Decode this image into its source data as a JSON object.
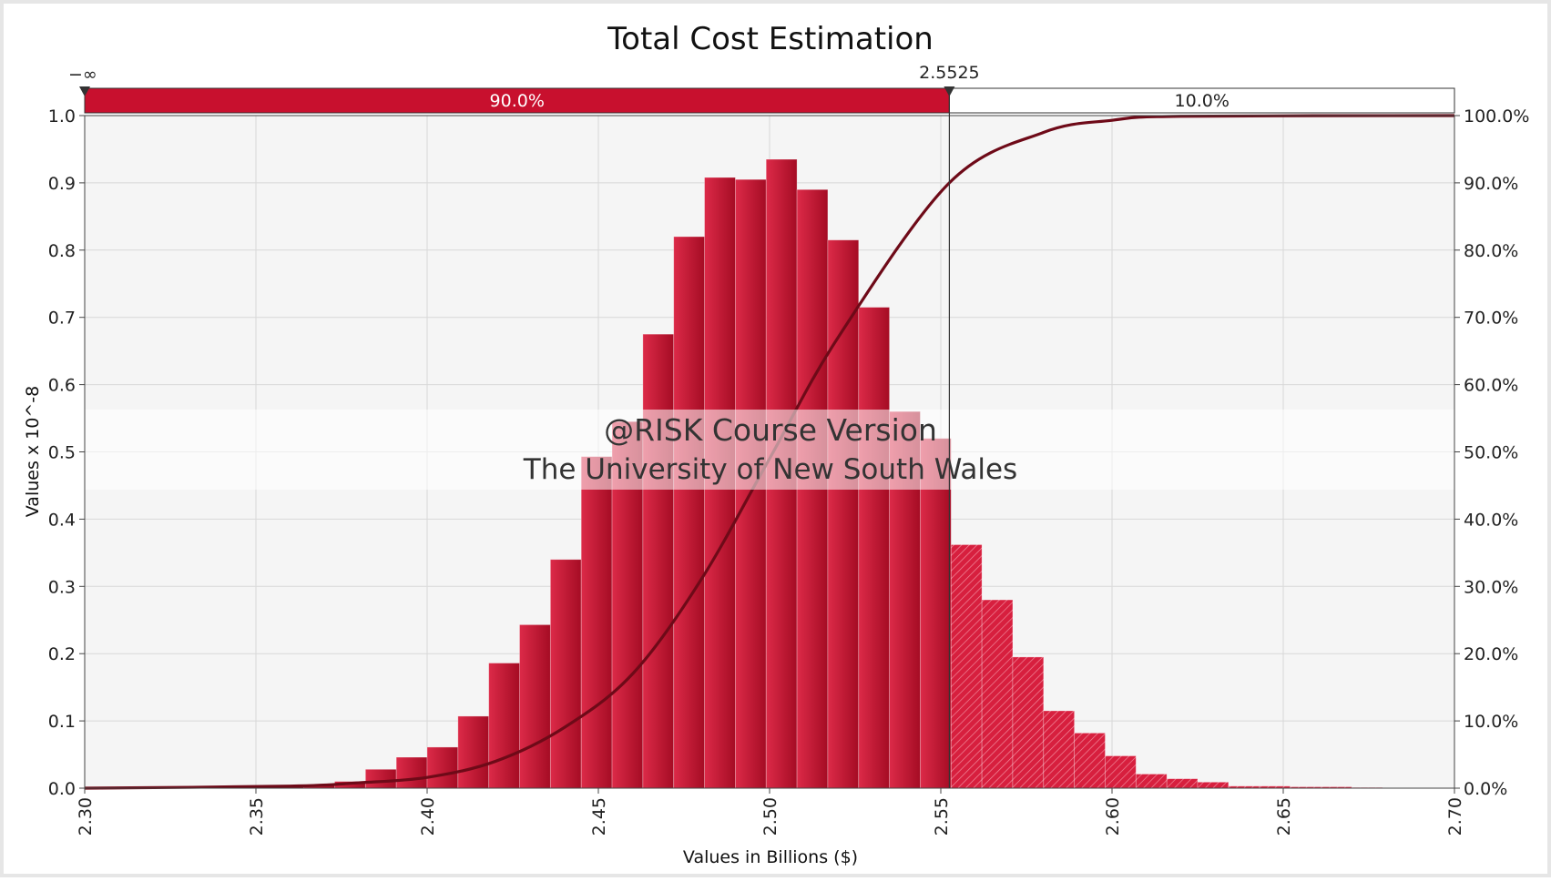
{
  "chart_data": {
    "type": "bar",
    "title": "Total Cost Estimation",
    "xlabel": "Values in Billions ($)",
    "ylabel": "Values x 10^-8",
    "xlim": [
      2.3,
      2.7
    ],
    "ylim": [
      0,
      1.0
    ],
    "x_ticks": [
      "2.30",
      "2.35",
      "2.40",
      "2.45",
      "2.50",
      "2.55",
      "2.60",
      "2.65",
      "2.70"
    ],
    "y_ticks": [
      "0.0",
      "0.1",
      "0.2",
      "0.3",
      "0.4",
      "0.5",
      "0.6",
      "0.7",
      "0.8",
      "0.9",
      "1.0"
    ],
    "y2_ticks": [
      "0.0%",
      "10.0%",
      "20.0%",
      "30.0%",
      "40.0%",
      "50.0%",
      "60.0%",
      "70.0%",
      "80.0%",
      "90.0%",
      "100.0%"
    ],
    "bin_width": 0.009,
    "bins_start": [
      2.301,
      2.31,
      2.319,
      2.328,
      2.337,
      2.346,
      2.355,
      2.364,
      2.373,
      2.382,
      2.391,
      2.4,
      2.409,
      2.418,
      2.427,
      2.436,
      2.445,
      2.454,
      2.463,
      2.472,
      2.481,
      2.49,
      2.499,
      2.508,
      2.517,
      2.526,
      2.535,
      2.544,
      2.553,
      2.562,
      2.571,
      2.58,
      2.589,
      2.598,
      2.607,
      2.616,
      2.625,
      2.634,
      2.643,
      2.652,
      2.661,
      2.67
    ],
    "values": [
      0.002,
      0.002,
      0.002,
      0.002,
      0.002,
      0.002,
      0.003,
      0.005,
      0.01,
      0.028,
      0.046,
      0.061,
      0.107,
      0.186,
      0.243,
      0.34,
      0.493,
      0.545,
      0.675,
      0.82,
      0.908,
      0.905,
      0.935,
      0.89,
      0.815,
      0.715,
      0.56,
      0.52,
      0.362,
      0.28,
      0.195,
      0.115,
      0.082,
      0.048,
      0.021,
      0.014,
      0.009,
      0.003,
      0.003,
      0.002,
      0.002,
      0.001
    ],
    "series": [
      {
        "name": "Cumulative",
        "x": [
          2.3,
          2.36,
          2.38,
          2.4,
          2.42,
          2.44,
          2.46,
          2.48,
          2.5,
          2.52,
          2.5525,
          2.58,
          2.6,
          2.62,
          2.7
        ],
        "values": [
          0.0,
          0.003,
          0.008,
          0.016,
          0.04,
          0.09,
          0.17,
          0.31,
          0.49,
          0.67,
          0.9,
          0.975,
          0.993,
          0.999,
          1.0
        ]
      }
    ],
    "cut_value": 2.5525,
    "range_bar": {
      "left_label": "−∞",
      "cut_label": "2.5525",
      "left_pct": "90.0%",
      "right_pct": "10.0%"
    },
    "watermark": [
      "@RISK Course Version",
      "The University of New South Wales"
    ]
  },
  "colors": {
    "bar": "#c8102e",
    "bar_light": "#dc2a48",
    "cdf": "#6e0a18",
    "plot_bg": "#f5f5f5",
    "grid": "#d8d8d8"
  }
}
